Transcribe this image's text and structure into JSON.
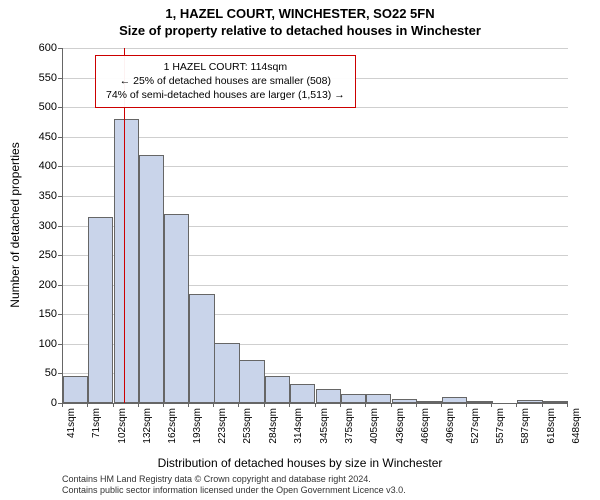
{
  "header": {
    "line1": "1, HAZEL COURT, WINCHESTER, SO22 5FN",
    "line2": "Size of property relative to detached houses in Winchester"
  },
  "chart": {
    "type": "histogram",
    "ylabel": "Number of detached properties",
    "xlabel": "Distribution of detached houses by size in Winchester",
    "ylim": [
      0,
      600
    ],
    "ytick_step": 50,
    "yticks": [
      0,
      50,
      100,
      150,
      200,
      250,
      300,
      350,
      400,
      450,
      500,
      550,
      600
    ],
    "xticks": [
      "41sqm",
      "71sqm",
      "102sqm",
      "132sqm",
      "162sqm",
      "193sqm",
      "223sqm",
      "253sqm",
      "284sqm",
      "314sqm",
      "345sqm",
      "375sqm",
      "405sqm",
      "436sqm",
      "466sqm",
      "496sqm",
      "527sqm",
      "557sqm",
      "587sqm",
      "618sqm",
      "648sqm"
    ],
    "bar_color": "#c9d4ea",
    "bar_border": "#666666",
    "grid_color": "#cfcfcf",
    "background_color": "#ffffff",
    "reference_line": {
      "value_sqm": 114,
      "color": "#cc0000"
    },
    "bars": [
      {
        "x_start": 41,
        "value": 45
      },
      {
        "x_start": 71,
        "value": 315
      },
      {
        "x_start": 102,
        "value": 480
      },
      {
        "x_start": 132,
        "value": 420
      },
      {
        "x_start": 162,
        "value": 320
      },
      {
        "x_start": 193,
        "value": 185
      },
      {
        "x_start": 223,
        "value": 102
      },
      {
        "x_start": 253,
        "value": 72
      },
      {
        "x_start": 284,
        "value": 45
      },
      {
        "x_start": 314,
        "value": 32
      },
      {
        "x_start": 345,
        "value": 23
      },
      {
        "x_start": 375,
        "value": 15
      },
      {
        "x_start": 405,
        "value": 16
      },
      {
        "x_start": 436,
        "value": 6
      },
      {
        "x_start": 466,
        "value": 4
      },
      {
        "x_start": 496,
        "value": 10
      },
      {
        "x_start": 527,
        "value": 3
      },
      {
        "x_start": 557,
        "value": 0
      },
      {
        "x_start": 587,
        "value": 5
      },
      {
        "x_start": 618,
        "value": 3
      }
    ],
    "x_domain": [
      41,
      648
    ],
    "bar_width_sqm": 30.35
  },
  "annotation": {
    "line1": "1 HAZEL COURT: 114sqm",
    "line2": "← 25% of detached houses are smaller (508)",
    "line3": "74% of semi-detached houses are larger (1,513) →",
    "border_color": "#cc0000",
    "fontsize": 10.5
  },
  "attribution": {
    "line1": "Contains HM Land Registry data © Crown copyright and database right 2024.",
    "line2": "Contains public sector information licensed under the Open Government Licence v3.0."
  }
}
